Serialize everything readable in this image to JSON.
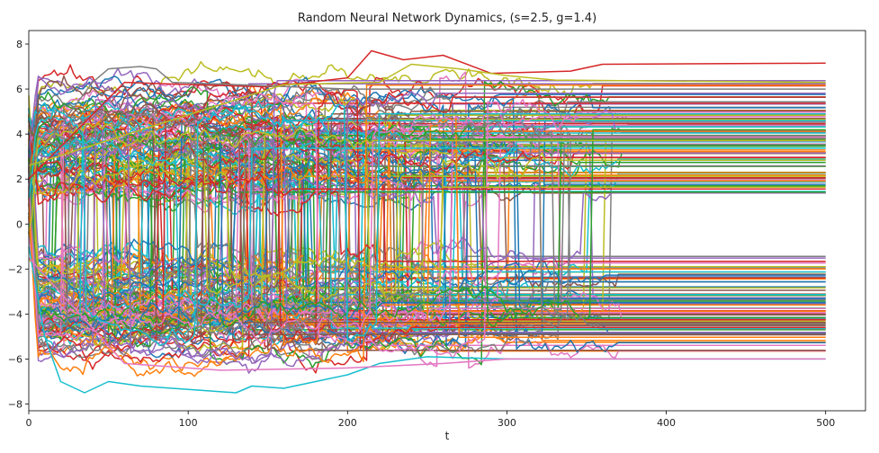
{
  "chart_data": {
    "type": "line",
    "title": "Random Neural Network Dynamics, (s=2.5, g=1.4)",
    "xlabel": "t",
    "ylabel": "",
    "xlim": [
      0,
      525
    ],
    "ylim": [
      -8.3,
      8.6
    ],
    "xticks": [
      0,
      100,
      200,
      300,
      400,
      500
    ],
    "yticks": [
      -8,
      -6,
      -4,
      -2,
      0,
      2,
      4,
      6,
      8
    ],
    "grid": false,
    "legend": "none",
    "series_count": 200,
    "t_end": 500,
    "colors": [
      "#1f77b4",
      "#ff7f0e",
      "#2ca02c",
      "#d62728",
      "#9467bd",
      "#8c564b",
      "#e377c2",
      "#7f7f7f",
      "#bcbd22",
      "#17becf"
    ],
    "highlighted_trajectories": [
      {
        "color": "#d62728",
        "points": [
          [
            0,
            2.0
          ],
          [
            60,
            6.3
          ],
          [
            100,
            6.2
          ],
          [
            150,
            6.1
          ],
          [
            200,
            6.5
          ],
          [
            215,
            7.7
          ],
          [
            235,
            7.3
          ],
          [
            260,
            7.5
          ],
          [
            290,
            6.7
          ],
          [
            340,
            6.8
          ],
          [
            360,
            7.1
          ],
          [
            500,
            7.15
          ]
        ]
      },
      {
        "color": "#7f7f7f",
        "points": [
          [
            0,
            2.5
          ],
          [
            40,
            6.3
          ],
          [
            50,
            6.9
          ],
          [
            70,
            7.0
          ],
          [
            80,
            6.9
          ],
          [
            90,
            6.3
          ],
          [
            130,
            6.2
          ],
          [
            200,
            6.0
          ],
          [
            300,
            6.0
          ],
          [
            500,
            6.0
          ]
        ]
      },
      {
        "color": "#bcbd22",
        "points": [
          [
            0,
            2.6
          ],
          [
            160,
            6.2
          ],
          [
            220,
            6.3
          ],
          [
            240,
            7.1
          ],
          [
            270,
            6.9
          ],
          [
            300,
            6.6
          ],
          [
            330,
            6.4
          ],
          [
            500,
            6.3
          ]
        ]
      },
      {
        "color": "#17becf",
        "points": [
          [
            0,
            -1.0
          ],
          [
            10,
            -5.0
          ],
          [
            20,
            -7.0
          ],
          [
            35,
            -7.5
          ],
          [
            50,
            -7.0
          ],
          [
            70,
            -7.2
          ],
          [
            90,
            -7.3
          ],
          [
            110,
            -7.4
          ],
          [
            130,
            -7.5
          ],
          [
            140,
            -7.2
          ],
          [
            160,
            -7.3
          ],
          [
            180,
            -7.0
          ],
          [
            200,
            -6.7
          ],
          [
            220,
            -6.2
          ],
          [
            250,
            -5.9
          ],
          [
            300,
            -6.0
          ],
          [
            350,
            -6.0
          ],
          [
            500,
            -6.0
          ]
        ]
      },
      {
        "color": "#e377c2",
        "points": [
          [
            0,
            -1.5
          ],
          [
            60,
            -6.2
          ],
          [
            120,
            -6.5
          ],
          [
            200,
            -6.4
          ],
          [
            260,
            -6.2
          ],
          [
            300,
            -6.0
          ],
          [
            500,
            -6.0
          ]
        ]
      }
    ],
    "final_values": {
      "upper_band": [
        1.4,
        1.6,
        1.75,
        1.9,
        2.0,
        2.1,
        2.25,
        2.35,
        2.5,
        2.6,
        2.7,
        2.8,
        2.9,
        3.0,
        3.1,
        3.2,
        3.3,
        3.4,
        3.5,
        3.55,
        3.65,
        3.75,
        3.85,
        3.95,
        4.0,
        4.1,
        4.2,
        4.3,
        4.4,
        4.5,
        4.6,
        4.7,
        4.85,
        5.0,
        5.2,
        5.4,
        5.6,
        5.8,
        6.1,
        6.3
      ],
      "lower_band": [
        -1.5,
        -1.7,
        -1.85,
        -2.0,
        -2.2,
        -2.4,
        -2.6,
        -2.8,
        -3.0,
        -3.1,
        -3.2,
        -3.3,
        -3.4,
        -3.5,
        -3.6,
        -3.7,
        -3.8,
        -3.9,
        -4.0,
        -4.1,
        -4.2,
        -4.3,
        -4.4,
        -4.5,
        -4.6,
        -4.7,
        -4.8,
        -4.9,
        -5.0,
        -5.1,
        -5.2,
        -5.4,
        -5.6,
        -5.7,
        -6.0
      ]
    }
  }
}
